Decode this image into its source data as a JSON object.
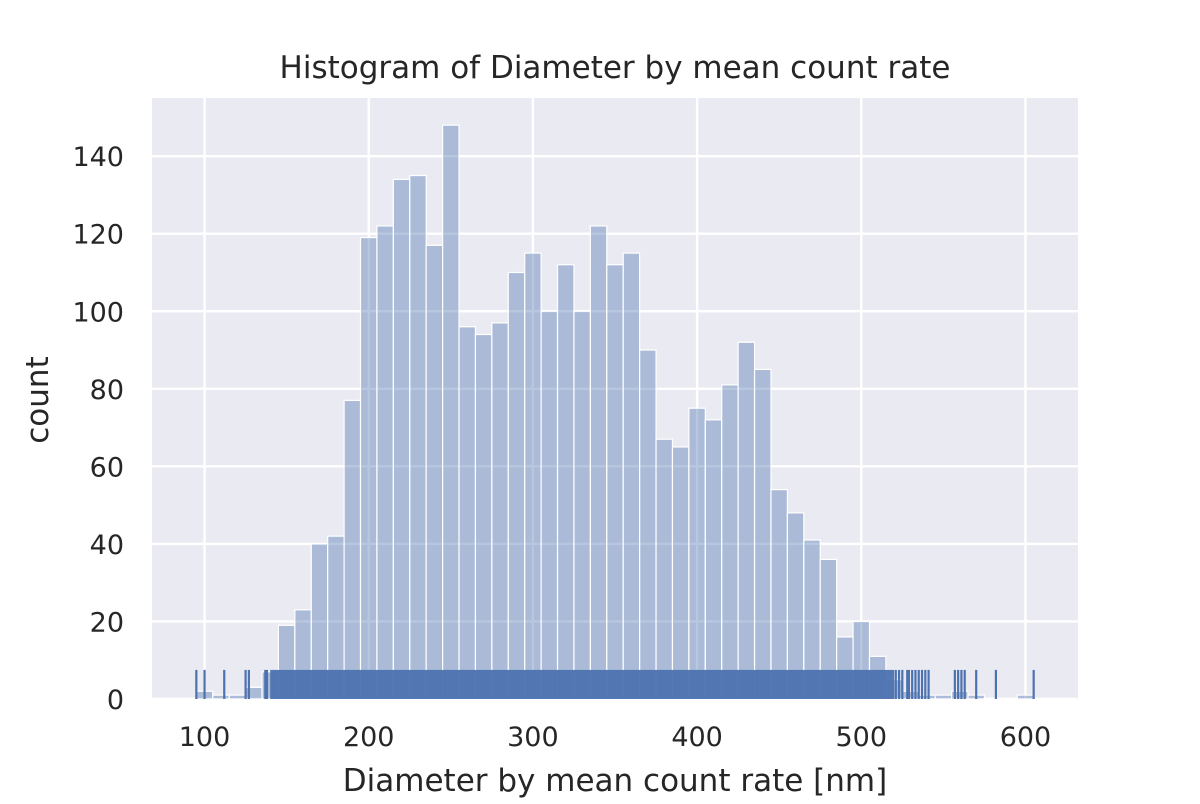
{
  "chart_data": {
    "type": "bar",
    "title": "Histogram of Diameter by mean count rate",
    "xlabel": "Diameter by mean count rate [nm]",
    "ylabel": "count",
    "xlim": [
      68,
      632
    ],
    "ylim": [
      0,
      155
    ],
    "xticks": [
      100,
      200,
      300,
      400,
      500,
      600
    ],
    "yticks": [
      0,
      20,
      40,
      60,
      80,
      100,
      120,
      140
    ],
    "grid": true,
    "bin_start": 95,
    "bin_width": 10,
    "bin_counts": [
      2,
      1,
      1,
      3,
      7,
      19,
      23,
      40,
      42,
      77,
      119,
      122,
      134,
      135,
      117,
      148,
      96,
      94,
      97,
      110,
      115,
      100,
      112,
      100,
      122,
      112,
      115,
      90,
      67,
      65,
      75,
      72,
      81,
      92,
      85,
      54,
      48,
      41,
      36,
      16,
      20,
      11,
      5,
      2,
      1,
      1,
      2,
      1,
      0,
      0,
      1
    ],
    "colors": {
      "background": "#eaeaf2",
      "grid": "#ffffff",
      "bar": "#4c72b0",
      "rug": "#4c72b0"
    },
    "bar_alpha": 0.4,
    "rug_dense_range": [
      140,
      520
    ],
    "rug_ticks": [
      95,
      100,
      112,
      125,
      127,
      137,
      138,
      521,
      523,
      525,
      528,
      529,
      531,
      533,
      535,
      537,
      539,
      541,
      557,
      559,
      561,
      563,
      570,
      582,
      605
    ]
  }
}
